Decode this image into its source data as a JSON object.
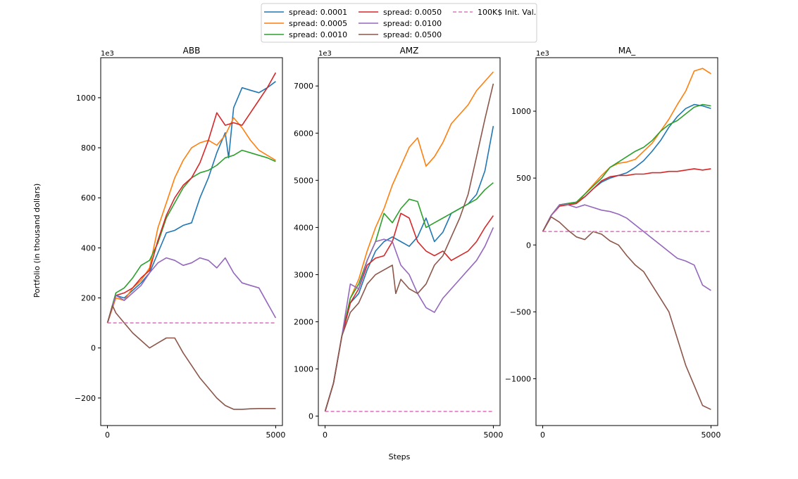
{
  "figure": {
    "xlabel": "Steps",
    "ylabel": "Portfolio (in thousand dollars)"
  },
  "legend": {
    "placement": "top-center",
    "entries": [
      {
        "label": "spread: 0.0001",
        "color": "#1f77b4",
        "style": "solid"
      },
      {
        "label": "spread: 0.0005",
        "color": "#ff7f0e",
        "style": "solid"
      },
      {
        "label": "spread: 0.0010",
        "color": "#2ca02c",
        "style": "solid"
      },
      {
        "label": "spread: 0.0050",
        "color": "#d62728",
        "style": "solid"
      },
      {
        "label": "spread: 0.0100",
        "color": "#9467bd",
        "style": "solid"
      },
      {
        "label": "spread: 0.0500",
        "color": "#8c564b",
        "style": "solid"
      },
      {
        "label": "100K$ Init. Val.",
        "color": "#e377c2",
        "style": "dashed"
      }
    ]
  },
  "chart_data": [
    {
      "type": "line",
      "title": "ABB",
      "offset_label": "1e3",
      "xlim": [
        -200,
        5200
      ],
      "ylim": [
        -310,
        1160
      ],
      "xticks": [
        0,
        5000
      ],
      "xtick_labels": [
        "0",
        "5000"
      ],
      "yticks": [
        -200,
        0,
        200,
        400,
        600,
        800,
        1000
      ],
      "ytick_labels": [
        "−200",
        "0",
        "200",
        "400",
        "600",
        "800",
        "1000"
      ],
      "series": [
        {
          "name": "spread: 0.0001",
          "x": [
            0,
            250,
            500,
            750,
            1000,
            1250,
            1500,
            1750,
            2000,
            2250,
            2500,
            2750,
            3000,
            3250,
            3500,
            3600,
            3750,
            4000,
            4250,
            4500,
            4750,
            5000
          ],
          "y": [
            100,
            210,
            200,
            230,
            260,
            300,
            380,
            460,
            470,
            490,
            500,
            600,
            680,
            780,
            860,
            760,
            960,
            1040,
            1030,
            1020,
            1040,
            1065
          ]
        },
        {
          "name": "spread: 0.0005",
          "x": [
            0,
            250,
            500,
            750,
            1000,
            1250,
            1500,
            1750,
            2000,
            2250,
            2500,
            2750,
            3000,
            3250,
            3500,
            3750,
            4000,
            4250,
            4500,
            4750,
            5000
          ],
          "y": [
            100,
            200,
            190,
            240,
            270,
            320,
            480,
            580,
            680,
            750,
            800,
            820,
            830,
            810,
            850,
            920,
            880,
            830,
            790,
            770,
            750
          ]
        },
        {
          "name": "spread: 0.0010",
          "x": [
            0,
            250,
            500,
            750,
            1000,
            1250,
            1500,
            1750,
            2000,
            2250,
            2500,
            2750,
            3000,
            3250,
            3500,
            3750,
            4000,
            4250,
            4500,
            4750,
            5000
          ],
          "y": [
            100,
            220,
            240,
            280,
            330,
            350,
            420,
            520,
            580,
            640,
            680,
            700,
            710,
            730,
            760,
            770,
            790,
            780,
            770,
            760,
            745
          ]
        },
        {
          "name": "spread: 0.0050",
          "x": [
            0,
            250,
            500,
            750,
            1000,
            1250,
            1500,
            1750,
            2000,
            2250,
            2500,
            2750,
            3000,
            3250,
            3500,
            3750,
            4000,
            4250,
            4500,
            4750,
            5000
          ],
          "y": [
            100,
            210,
            220,
            240,
            280,
            310,
            430,
            530,
            600,
            650,
            680,
            740,
            830,
            940,
            890,
            900,
            890,
            940,
            990,
            1040,
            1100
          ]
        },
        {
          "name": "spread: 0.0100",
          "x": [
            0,
            250,
            500,
            750,
            1000,
            1250,
            1500,
            1750,
            2000,
            2250,
            2500,
            2750,
            3000,
            3250,
            3500,
            3750,
            4000,
            4250,
            4500,
            4750,
            5000
          ],
          "y": [
            100,
            210,
            190,
            220,
            250,
            300,
            340,
            360,
            350,
            330,
            340,
            360,
            350,
            320,
            360,
            300,
            260,
            250,
            240,
            180,
            120
          ]
        },
        {
          "name": "spread: 0.0500",
          "x": [
            0,
            150,
            250,
            500,
            750,
            1000,
            1250,
            1500,
            1750,
            2000,
            2250,
            2500,
            2750,
            3000,
            3250,
            3500,
            3750,
            4000,
            4250,
            4500,
            4750,
            5000
          ],
          "y": [
            100,
            170,
            140,
            100,
            60,
            30,
            0,
            20,
            40,
            40,
            -20,
            -70,
            -120,
            -160,
            -200,
            -230,
            -245,
            -245,
            -243,
            -242,
            -242,
            -242
          ]
        },
        {
          "name": "100K$ Init. Val.",
          "x": [
            0,
            5000
          ],
          "y": [
            100,
            100
          ],
          "dashed": true
        }
      ]
    },
    {
      "type": "line",
      "title": "AMZ",
      "offset_label": "1e3",
      "xlim": [
        -200,
        5200
      ],
      "ylim": [
        -200,
        7600
      ],
      "xticks": [
        0,
        5000
      ],
      "xtick_labels": [
        "0",
        "5000"
      ],
      "yticks": [
        0,
        1000,
        2000,
        3000,
        4000,
        5000,
        6000,
        7000
      ],
      "ytick_labels": [
        "0",
        "1000",
        "2000",
        "3000",
        "4000",
        "5000",
        "6000",
        "7000"
      ],
      "series": [
        {
          "name": "spread: 0.0001",
          "x": [
            0,
            250,
            500,
            750,
            1000,
            1250,
            1500,
            1750,
            2000,
            2250,
            2500,
            2750,
            3000,
            3250,
            3500,
            3750,
            4000,
            4250,
            4500,
            4750,
            5000
          ],
          "y": [
            100,
            700,
            1700,
            2400,
            2600,
            3100,
            3500,
            3700,
            3800,
            3700,
            3600,
            3800,
            4200,
            3700,
            3900,
            4300,
            4400,
            4500,
            4700,
            5200,
            6150
          ]
        },
        {
          "name": "spread: 0.0005",
          "x": [
            0,
            250,
            500,
            750,
            1000,
            1250,
            1500,
            1750,
            2000,
            2250,
            2500,
            2750,
            3000,
            3250,
            3500,
            3750,
            4000,
            4250,
            4500,
            4750,
            5000
          ],
          "y": [
            100,
            700,
            1700,
            2500,
            2900,
            3500,
            4000,
            4400,
            4900,
            5300,
            5700,
            5900,
            5300,
            5500,
            5800,
            6200,
            6400,
            6600,
            6900,
            7100,
            7300
          ]
        },
        {
          "name": "spread: 0.0010",
          "x": [
            0,
            250,
            500,
            750,
            1000,
            1250,
            1500,
            1750,
            2000,
            2250,
            2500,
            2750,
            3000,
            3250,
            3500,
            3750,
            4000,
            4250,
            4500,
            4750,
            5000
          ],
          "y": [
            100,
            700,
            1700,
            2500,
            2800,
            3300,
            3700,
            4300,
            4100,
            4400,
            4600,
            4550,
            4000,
            4100,
            4200,
            4300,
            4400,
            4500,
            4600,
            4800,
            4950
          ]
        },
        {
          "name": "spread: 0.0050",
          "x": [
            0,
            250,
            500,
            750,
            1000,
            1250,
            1500,
            1750,
            2000,
            2250,
            2500,
            2750,
            3000,
            3250,
            3500,
            3750,
            4000,
            4250,
            4500,
            4750,
            5000
          ],
          "y": [
            100,
            700,
            1700,
            2400,
            2700,
            3200,
            3350,
            3400,
            3700,
            4300,
            4200,
            3700,
            3500,
            3400,
            3500,
            3300,
            3400,
            3500,
            3700,
            4000,
            4250
          ]
        },
        {
          "name": "spread: 0.0100",
          "x": [
            0,
            250,
            500,
            750,
            1000,
            1250,
            1500,
            1750,
            2000,
            2250,
            2500,
            2750,
            3000,
            3250,
            3500,
            3750,
            4000,
            4250,
            4500,
            4750,
            5000
          ],
          "y": [
            100,
            700,
            1700,
            2800,
            2700,
            3300,
            3700,
            3750,
            3700,
            3200,
            3000,
            2600,
            2300,
            2200,
            2500,
            2700,
            2900,
            3100,
            3300,
            3600,
            4000
          ]
        },
        {
          "name": "spread: 0.0500",
          "x": [
            0,
            250,
            500,
            750,
            1000,
            1250,
            1500,
            1750,
            2000,
            2100,
            2250,
            2500,
            2750,
            3000,
            3250,
            3500,
            3750,
            4000,
            4250,
            4500,
            4750,
            5000
          ],
          "y": [
            100,
            700,
            1700,
            2200,
            2400,
            2800,
            3000,
            3100,
            3200,
            2600,
            2900,
            2700,
            2600,
            2800,
            3200,
            3400,
            3800,
            4200,
            4700,
            5500,
            6300,
            7050
          ]
        },
        {
          "name": "100K$ Init. Val.",
          "x": [
            0,
            5000
          ],
          "y": [
            100,
            100
          ],
          "dashed": true
        }
      ]
    },
    {
      "type": "line",
      "title": "MA_",
      "offset_label": "1e3",
      "xlim": [
        -200,
        5200
      ],
      "ylim": [
        -1350,
        1400
      ],
      "xticks": [
        0,
        5000
      ],
      "xtick_labels": [
        "0",
        "5000"
      ],
      "yticks": [
        -1000,
        -500,
        0,
        500,
        1000
      ],
      "ytick_labels": [
        "−1000",
        "−500",
        "0",
        "500",
        "1000"
      ],
      "series": [
        {
          "name": "spread: 0.0001",
          "x": [
            0,
            250,
            500,
            750,
            1000,
            1250,
            1500,
            1750,
            2000,
            2250,
            2500,
            2750,
            3000,
            3250,
            3500,
            3750,
            4000,
            4250,
            4500,
            4750,
            5000
          ],
          "y": [
            100,
            220,
            300,
            310,
            320,
            360,
            420,
            470,
            500,
            520,
            540,
            580,
            630,
            700,
            780,
            880,
            960,
            1020,
            1050,
            1040,
            1020
          ]
        },
        {
          "name": "spread: 0.0005",
          "x": [
            0,
            250,
            500,
            750,
            1000,
            1250,
            1500,
            1750,
            2000,
            2250,
            2500,
            2750,
            3000,
            3250,
            3500,
            3750,
            4000,
            4250,
            4500,
            4750,
            5000
          ],
          "y": [
            100,
            220,
            300,
            300,
            310,
            380,
            450,
            520,
            580,
            610,
            620,
            640,
            700,
            760,
            850,
            940,
            1050,
            1150,
            1300,
            1320,
            1280
          ]
        },
        {
          "name": "spread: 0.0010",
          "x": [
            0,
            250,
            500,
            750,
            1000,
            1250,
            1500,
            1750,
            2000,
            2250,
            2500,
            2750,
            3000,
            3250,
            3500,
            3750,
            4000,
            4250,
            4500,
            4750,
            5000
          ],
          "y": [
            100,
            220,
            300,
            310,
            320,
            380,
            440,
            500,
            580,
            620,
            660,
            700,
            730,
            780,
            850,
            900,
            930,
            980,
            1030,
            1050,
            1040
          ]
        },
        {
          "name": "spread: 0.0050",
          "x": [
            0,
            250,
            500,
            750,
            1000,
            1250,
            1500,
            1750,
            2000,
            2250,
            2500,
            2750,
            3000,
            3250,
            3500,
            3750,
            4000,
            4250,
            4500,
            4750,
            5000
          ],
          "y": [
            100,
            220,
            290,
            300,
            310,
            360,
            420,
            480,
            510,
            520,
            520,
            530,
            530,
            540,
            540,
            550,
            550,
            560,
            570,
            560,
            570
          ]
        },
        {
          "name": "spread: 0.0100",
          "x": [
            0,
            250,
            500,
            750,
            1000,
            1250,
            1500,
            1750,
            2000,
            2250,
            2500,
            2750,
            3000,
            3250,
            3500,
            3750,
            4000,
            4250,
            4500,
            4750,
            5000
          ],
          "y": [
            100,
            220,
            300,
            300,
            280,
            300,
            280,
            260,
            250,
            230,
            200,
            150,
            100,
            50,
            0,
            -50,
            -100,
            -120,
            -150,
            -300,
            -340
          ]
        },
        {
          "name": "spread: 0.0500",
          "x": [
            0,
            250,
            500,
            750,
            1000,
            1250,
            1500,
            1750,
            2000,
            2250,
            2500,
            2750,
            3000,
            3250,
            3500,
            3750,
            4000,
            4250,
            4500,
            4750,
            5000
          ],
          "y": [
            100,
            210,
            170,
            110,
            60,
            40,
            100,
            80,
            30,
            0,
            -80,
            -150,
            -200,
            -300,
            -400,
            -500,
            -700,
            -900,
            -1050,
            -1200,
            -1230
          ]
        },
        {
          "name": "100K$ Init. Val.",
          "x": [
            0,
            5000
          ],
          "y": [
            100,
            100
          ],
          "dashed": true
        }
      ]
    }
  ]
}
